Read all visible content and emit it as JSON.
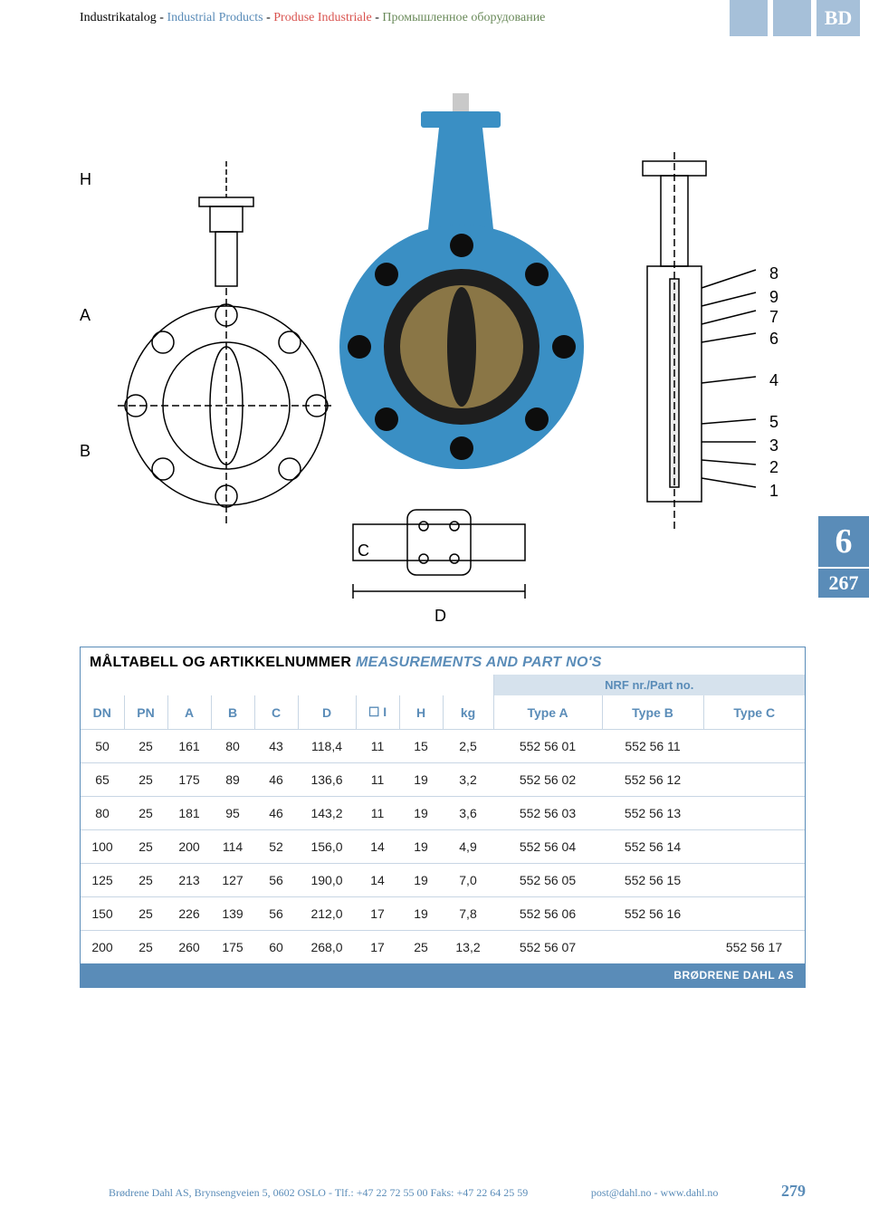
{
  "breadcrumb": {
    "p1": {
      "text": "Industrikatalog",
      "color": "#000000"
    },
    "p2": {
      "text": "Industrial Products",
      "color": "#5a8cb8"
    },
    "p3": {
      "text": "Produse Industriale",
      "color": "#d9534f"
    },
    "p4": {
      "text": "Промышленное оборудование",
      "color": "#6a8a5a"
    }
  },
  "logo_text": "BD",
  "side_tab": {
    "section": "6",
    "page": "267"
  },
  "diagram_labels": {
    "H": "H",
    "A": "A",
    "B": "B",
    "C": "C",
    "D": "D",
    "n1": "1",
    "n2": "2",
    "n3": "3",
    "n4": "4",
    "n5": "5",
    "n6": "6",
    "n7": "7",
    "n8": "8",
    "n9": "9"
  },
  "table": {
    "title_black": "MÅLTABELL OG ARTIKKELNUMMER",
    "title_blue": "MEASUREMENTS AND PART NO'S",
    "nrf_label": "NRF nr./Part no.",
    "columns": [
      "DN",
      "PN",
      "A",
      "B",
      "C",
      "D",
      "☐ I",
      "H",
      "kg",
      "Type A",
      "Type B",
      "Type C"
    ],
    "rows": [
      [
        "50",
        "25",
        "161",
        "80",
        "43",
        "118,4",
        "11",
        "15",
        "2,5",
        "552 56 01",
        "552 56 11",
        ""
      ],
      [
        "65",
        "25",
        "175",
        "89",
        "46",
        "136,6",
        "11",
        "19",
        "3,2",
        "552 56 02",
        "552 56 12",
        ""
      ],
      [
        "80",
        "25",
        "181",
        "95",
        "46",
        "143,2",
        "11",
        "19",
        "3,6",
        "552 56 03",
        "552 56 13",
        ""
      ],
      [
        "100",
        "25",
        "200",
        "114",
        "52",
        "156,0",
        "14",
        "19",
        "4,9",
        "552 56 04",
        "552 56 14",
        ""
      ],
      [
        "125",
        "25",
        "213",
        "127",
        "56",
        "190,0",
        "14",
        "19",
        "7,0",
        "552 56 05",
        "552 56 15",
        ""
      ],
      [
        "150",
        "25",
        "226",
        "139",
        "56",
        "212,0",
        "17",
        "19",
        "7,8",
        "552 56 06",
        "552 56 16",
        ""
      ],
      [
        "200",
        "25",
        "260",
        "175",
        "60",
        "268,0",
        "17",
        "25",
        "13,2",
        "552 56 07",
        "",
        "552 56 17"
      ]
    ],
    "footer": "BRØDRENE DAHL AS"
  },
  "footer": {
    "address": "Brødrene Dahl AS, Brynsengveien 5, 0602 OSLO - Tlf.: +47 22 72 55 00 Faks: +47 22 64 25 59",
    "contact": "post@dahl.no - www.dahl.no",
    "page": "279"
  },
  "colors": {
    "brand_blue": "#5a8cb8",
    "pale_blue": "#a6c0d9",
    "header_bg": "#d6e2ed",
    "valve_blue": "#3a8fc4",
    "valve_dark": "#1e1e1e"
  }
}
